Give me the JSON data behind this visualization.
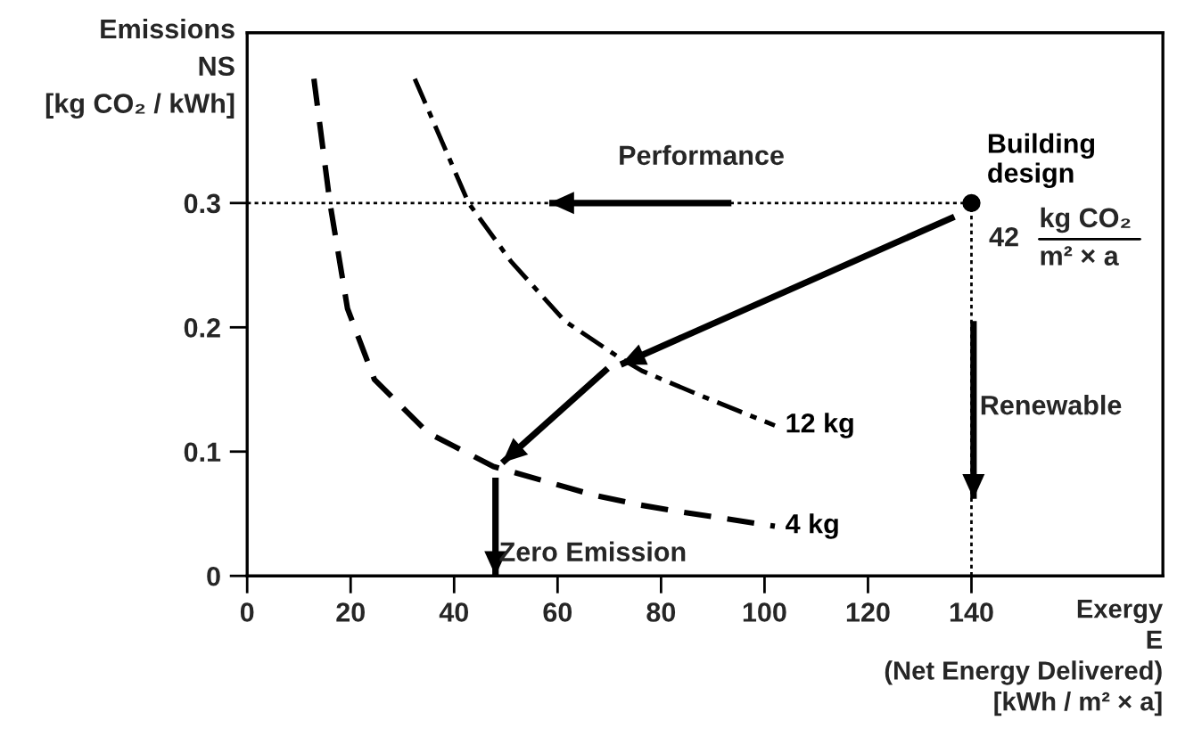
{
  "chart_data": {
    "type": "line",
    "xlabel": "Exergy\nE\n(Net Energy Delivered)\n[kWh / m² × a]",
    "ylabel": "Emissions\nNS\n[kg CO₂ / kWh]",
    "xlim": [
      0,
      177
    ],
    "ylim": [
      0,
      0.437
    ],
    "xticks": [
      0,
      20,
      40,
      60,
      80,
      100,
      120,
      140
    ],
    "yticks": [
      0,
      0.1,
      0.2,
      0.3
    ],
    "grid": false,
    "legend": false,
    "series": [
      {
        "name": "4 kg",
        "color": "#000000",
        "line_style": "dashed",
        "x": [
          12.9,
          16,
          19.4,
          24.6,
          35,
          47.6,
          67,
          76,
          83,
          102
        ],
        "values": [
          0.4,
          0.3,
          0.215,
          0.158,
          0.115,
          0.088,
          0.065,
          0.057,
          0.052,
          0.04
        ]
      },
      {
        "name": "12 kg",
        "color": "#000000",
        "line_style": "dashdot",
        "x": [
          32.4,
          42.8,
          51,
          61.4,
          71.8,
          76.3,
          87.7,
          102
        ],
        "values": [
          0.4,
          0.3,
          0.253,
          0.205,
          0.176,
          0.165,
          0.145,
          0.121
        ]
      },
      {
        "color": "#000000",
        "line_style": "dotted",
        "x": [
          0,
          140
        ],
        "values": [
          0.3,
          0.3
        ]
      },
      {
        "color": "#000000",
        "line_style": "dotted",
        "x": [
          140,
          140
        ],
        "values": [
          0,
          0.3
        ]
      },
      {
        "color": "#000000",
        "line_style": "solid",
        "x": [
          93.6,
          58.4
        ],
        "values": [
          0.3,
          0.3
        ]
      },
      {
        "color": "#000000",
        "line_style": "solid",
        "x": [
          136.7,
          72.2
        ],
        "values": [
          0.289,
          0.17
        ]
      },
      {
        "color": "#000000",
        "line_style": "solid",
        "x": [
          69.7,
          49.3
        ],
        "values": [
          0.167,
          0.091
        ]
      },
      {
        "color": "#000000",
        "line_style": "solid",
        "x": [
          48,
          48
        ],
        "values": [
          0.079,
          0.0
        ]
      },
      {
        "color": "#000000",
        "line_style": "solid",
        "x": [
          140.4,
          140.4
        ],
        "values": [
          0.205,
          0.062
        ]
      },
      {
        "type": "scatter",
        "name": "Building\ndesign",
        "color": "#000000",
        "marker": "circle",
        "x": [
          140
        ],
        "values": [
          0.3
        ]
      }
    ],
    "annotations": [
      "Performance",
      "Renewable",
      "Zero Emission",
      "42",
      "kg CO₂",
      "m² × a"
    ]
  }
}
